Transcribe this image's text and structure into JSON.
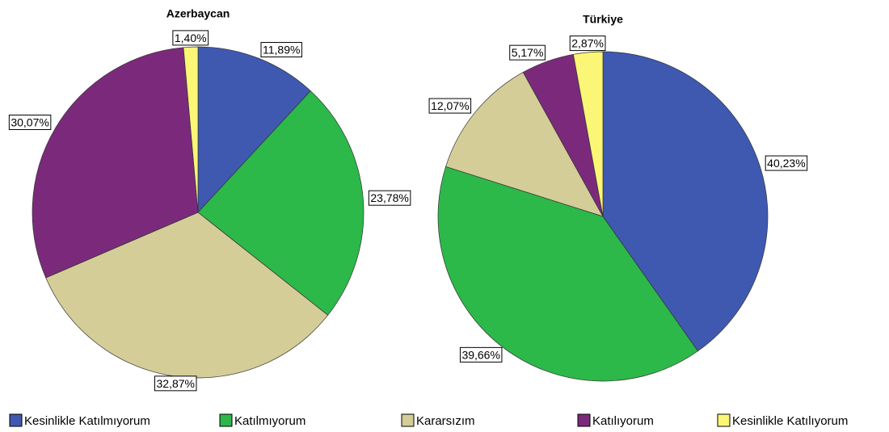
{
  "chart_data": [
    {
      "type": "pie",
      "title": "Azerbaycan",
      "values": [
        11.89,
        23.78,
        32.87,
        30.07,
        1.4
      ],
      "value_labels": [
        "11,89%",
        "23,78%",
        "32,87%",
        "30,07%",
        "1,40%"
      ]
    },
    {
      "type": "pie",
      "title": "Türkiye",
      "values": [
        40.23,
        39.66,
        12.07,
        5.17,
        2.87
      ],
      "value_labels": [
        "40,23%",
        "39,66%",
        "12,07%",
        "5,17%",
        "2,87%"
      ]
    }
  ],
  "legend": {
    "labels": [
      "Kesinlikle Katılmıyorum",
      "Katılmıyorum",
      "Kararsızım",
      "Katılıyorum",
      "Kesinlikle Katılıyorum"
    ],
    "colors": [
      "#3f59b0",
      "#2db84a",
      "#d4cd98",
      "#7b2a7b",
      "#fbf676"
    ]
  }
}
